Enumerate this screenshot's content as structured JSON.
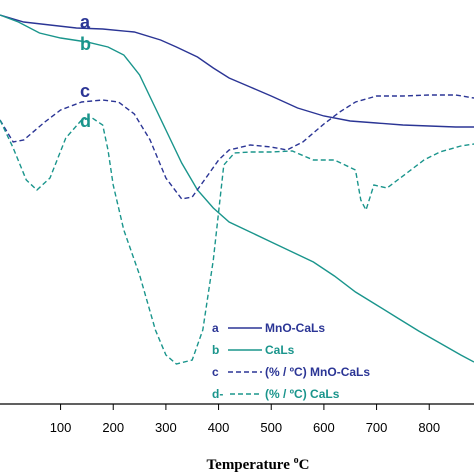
{
  "chart_data": {
    "type": "line",
    "xlabel": "Temperature ",
    "xlabel_unit_sup": "o",
    "xlabel_unit": "C",
    "xlim": [
      -15,
      885
    ],
    "x_ticks": [
      100,
      200,
      300,
      400,
      500,
      600,
      700,
      800
    ],
    "x_tick_labels": [
      "100",
      "200",
      "300",
      "400",
      "500",
      "600",
      "700",
      "800"
    ],
    "grid": false,
    "legend_position": "bottom-right",
    "colors": {
      "blue": "#2b3595",
      "teal": "#1a958c"
    },
    "series": [
      {
        "name": "MnO-CaLs",
        "curve_letter": "a",
        "color": "#2b3595",
        "style": "solid",
        "points": [
          [
            -15,
            15
          ],
          [
            30,
            22
          ],
          [
            80,
            25
          ],
          [
            130,
            28
          ],
          [
            180,
            29
          ],
          [
            240,
            32
          ],
          [
            290,
            40
          ],
          [
            320,
            47
          ],
          [
            360,
            57
          ],
          [
            390,
            68
          ],
          [
            420,
            78
          ],
          [
            460,
            87
          ],
          [
            500,
            96
          ],
          [
            550,
            108
          ],
          [
            600,
            116
          ],
          [
            650,
            121
          ],
          [
            700,
            123
          ],
          [
            750,
            125
          ],
          [
            800,
            126
          ],
          [
            850,
            127
          ],
          [
            885,
            127
          ]
        ]
      },
      {
        "name": "CaLs",
        "curve_letter": "b",
        "color": "#1a958c",
        "style": "solid",
        "points": [
          [
            -15,
            15
          ],
          [
            20,
            22
          ],
          [
            60,
            33
          ],
          [
            100,
            38
          ],
          [
            150,
            42
          ],
          [
            190,
            47
          ],
          [
            220,
            55
          ],
          [
            250,
            75
          ],
          [
            280,
            108
          ],
          [
            300,
            130
          ],
          [
            330,
            163
          ],
          [
            360,
            190
          ],
          [
            390,
            208
          ],
          [
            420,
            222
          ],
          [
            460,
            232
          ],
          [
            500,
            242
          ],
          [
            540,
            252
          ],
          [
            580,
            262
          ],
          [
            620,
            276
          ],
          [
            660,
            292
          ],
          [
            700,
            305
          ],
          [
            740,
            318
          ],
          [
            780,
            331
          ],
          [
            820,
            343
          ],
          [
            860,
            355
          ],
          [
            885,
            362
          ]
        ]
      },
      {
        "name": "(% / ºC) MnO-CaLs",
        "curve_letter": "c",
        "color": "#2b3595",
        "style": "dashed",
        "points": [
          [
            -15,
            120
          ],
          [
            10,
            142
          ],
          [
            30,
            140
          ],
          [
            70,
            122
          ],
          [
            100,
            110
          ],
          [
            140,
            102
          ],
          [
            180,
            100
          ],
          [
            210,
            102
          ],
          [
            240,
            114
          ],
          [
            270,
            140
          ],
          [
            300,
            178
          ],
          [
            330,
            199
          ],
          [
            350,
            197
          ],
          [
            380,
            175
          ],
          [
            400,
            160
          ],
          [
            420,
            150
          ],
          [
            460,
            145
          ],
          [
            500,
            147
          ],
          [
            530,
            150
          ],
          [
            560,
            142
          ],
          [
            600,
            124
          ],
          [
            630,
            112
          ],
          [
            660,
            102
          ],
          [
            700,
            96
          ],
          [
            750,
            96
          ],
          [
            800,
            95
          ],
          [
            850,
            95
          ],
          [
            885,
            98
          ]
        ]
      },
      {
        "name": "(% / ºC) CaLs",
        "curve_letter": "d",
        "color": "#1a958c",
        "style": "dashed",
        "points": [
          [
            -15,
            120
          ],
          [
            10,
            148
          ],
          [
            35,
            180
          ],
          [
            55,
            190
          ],
          [
            80,
            178
          ],
          [
            110,
            138
          ],
          [
            140,
            120
          ],
          [
            160,
            118
          ],
          [
            180,
            125
          ],
          [
            190,
            150
          ],
          [
            200,
            185
          ],
          [
            220,
            230
          ],
          [
            250,
            275
          ],
          [
            280,
            330
          ],
          [
            300,
            355
          ],
          [
            320,
            364
          ],
          [
            350,
            360
          ],
          [
            370,
            330
          ],
          [
            390,
            260
          ],
          [
            410,
            165
          ],
          [
            430,
            153
          ],
          [
            460,
            152
          ],
          [
            500,
            152
          ],
          [
            540,
            151
          ],
          [
            580,
            160
          ],
          [
            620,
            160
          ],
          [
            640,
            165
          ],
          [
            660,
            170
          ],
          [
            670,
            200
          ],
          [
            680,
            210
          ],
          [
            695,
            185
          ],
          [
            720,
            188
          ],
          [
            740,
            180
          ],
          [
            760,
            172
          ],
          [
            790,
            160
          ],
          [
            820,
            152
          ],
          [
            860,
            146
          ],
          [
            885,
            144
          ]
        ]
      }
    ]
  },
  "legend": [
    {
      "letter": "a",
      "label": "MnO-CaLs",
      "color": "#2b3595",
      "style": "solid"
    },
    {
      "letter": "b",
      "label": "CaLs",
      "color": "#1a958c",
      "style": "solid"
    },
    {
      "letter": "c",
      "label": "(% / ºC) MnO-CaLs",
      "color": "#2b3595",
      "style": "dashed"
    },
    {
      "letter": "d-",
      "label": "(% / ºC) CaLs",
      "color": "#1a958c",
      "style": "dashed"
    }
  ],
  "curve_labels": [
    {
      "text": "a",
      "color": "#2b3595"
    },
    {
      "text": "b",
      "color": "#1a958c"
    },
    {
      "text": "c",
      "color": "#2b3595"
    },
    {
      "text": "d",
      "color": "#1a958c"
    }
  ]
}
